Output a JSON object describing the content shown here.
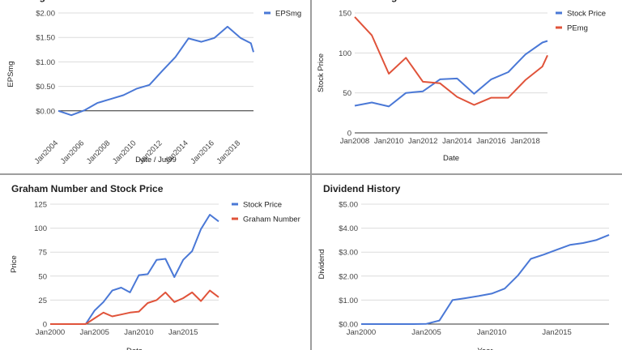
{
  "chart_data": [
    {
      "type": "line",
      "title": "EPSmg",
      "xlabel": "Date / Jul99",
      "ylabel": "EPSmg",
      "x": [
        2004,
        2005,
        2006,
        2007,
        2008,
        2009,
        2010,
        2011,
        2012,
        2013,
        2014,
        2015,
        2016,
        2017,
        2018,
        2019
      ],
      "series": [
        {
          "name": "EPSmg",
          "color": "#4a78d6",
          "values": [
            0.0,
            -0.09,
            0.01,
            0.16,
            0.24,
            0.32,
            0.45,
            0.53,
            0.82,
            1.1,
            1.48,
            1.41,
            1.49,
            1.72,
            1.49,
            1.38,
            1.2
          ]
        }
      ],
      "x_values": [
        2004,
        2005,
        2006,
        2007,
        2008,
        2009,
        2010,
        2011,
        2012,
        2013,
        2014,
        2015,
        2016,
        2017,
        2018,
        2018.8,
        2019
      ],
      "xlim": [
        2004,
        2019
      ],
      "ylim": [
        -0.5,
        2.0
      ],
      "xticks": [
        2004,
        2006,
        2008,
        2010,
        2012,
        2014,
        2016,
        2018
      ],
      "xtick_labels": [
        "Jan2004",
        "Jan2006",
        "Jan2008",
        "Jan2010",
        "Jan2012",
        "Jan2014",
        "Jan2016",
        "Jan2018"
      ],
      "yticks": [
        0.0,
        0.5,
        1.0,
        1.5,
        2.0
      ],
      "ytick_labels": [
        "$0.00",
        "$0.50",
        "$1.00",
        "$1.50",
        "$2.00"
      ],
      "legend": "top-right",
      "grid": true
    },
    {
      "type": "line",
      "title": "Price and PEmg",
      "xlabel": "Date",
      "ylabel": "Stock Price",
      "x": [
        2008,
        2009,
        2010,
        2011,
        2012,
        2013,
        2014,
        2015,
        2016,
        2017,
        2018,
        2019,
        2019.3
      ],
      "series": [
        {
          "name": "Stock Price",
          "color": "#4a78d6",
          "values": [
            34,
            38,
            33,
            50,
            52,
            67,
            68,
            49,
            67,
            76,
            98,
            113,
            115
          ]
        },
        {
          "name": "PEmg",
          "color": "#e0533a",
          "values": [
            145,
            122,
            74,
            94,
            64,
            62,
            45,
            35,
            44,
            44,
            66,
            83,
            97
          ]
        }
      ],
      "xlim": [
        2008,
        2019.3
      ],
      "ylim": [
        0,
        150
      ],
      "xticks": [
        2008,
        2010,
        2012,
        2014,
        2016,
        2018
      ],
      "xtick_labels": [
        "Jan2008",
        "Jan2010",
        "Jan2012",
        "Jan2014",
        "Jan2016",
        "Jan2018"
      ],
      "yticks": [
        0,
        50,
        100,
        150
      ],
      "ytick_labels": [
        "0",
        "50",
        "100",
        "150"
      ],
      "legend": "top-right",
      "grid": true
    },
    {
      "type": "line",
      "title": "Graham Number and Stock Price",
      "xlabel": "Date",
      "ylabel": "Price",
      "x": [
        2000,
        2001,
        2002,
        2003,
        2004,
        2005,
        2006,
        2007,
        2008,
        2009,
        2010,
        2011,
        2012,
        2013,
        2014,
        2015,
        2016,
        2017,
        2018,
        2019
      ],
      "series": [
        {
          "name": "Stock Price",
          "color": "#4a78d6",
          "values": [
            0,
            0,
            0,
            0,
            0,
            14,
            23,
            35,
            38,
            33,
            51,
            52,
            67,
            68,
            49,
            67,
            76,
            99,
            114,
            107
          ]
        },
        {
          "name": "Graham Number",
          "color": "#e0533a",
          "values": [
            0,
            0,
            0,
            0,
            0,
            6,
            12,
            8,
            10,
            12,
            13,
            22,
            25,
            33,
            23,
            27,
            33,
            24,
            35,
            28
          ]
        }
      ],
      "xlim": [
        2000,
        2019
      ],
      "ylim": [
        0,
        125
      ],
      "xticks": [
        2000,
        2005,
        2010,
        2015
      ],
      "xtick_labels": [
        "Jan2000",
        "Jan2005",
        "Jan2010",
        "Jan2015"
      ],
      "yticks": [
        0,
        25,
        50,
        75,
        100,
        125
      ],
      "ytick_labels": [
        "0",
        "25",
        "50",
        "75",
        "100",
        "125"
      ],
      "legend": "top-right",
      "grid": true
    },
    {
      "type": "line",
      "title": "Dividend History",
      "xlabel": "Year",
      "ylabel": "Dividend",
      "x": [
        2000,
        2002,
        2004,
        2005,
        2006,
        2007,
        2008,
        2009,
        2010,
        2011,
        2012,
        2013,
        2014,
        2015,
        2016,
        2017,
        2018,
        2019
      ],
      "series": [
        {
          "name": "Dividend",
          "color": "#4a78d6",
          "values": [
            0,
            0,
            0,
            0.01,
            0.15,
            1.0,
            1.08,
            1.17,
            1.27,
            1.48,
            2.02,
            2.72,
            2.9,
            3.1,
            3.3,
            3.38,
            3.5,
            3.72
          ]
        }
      ],
      "xlim": [
        2000,
        2019
      ],
      "ylim": [
        0,
        5
      ],
      "xticks": [
        2000,
        2005,
        2010,
        2015
      ],
      "xtick_labels": [
        "Jan2000",
        "Jan2005",
        "Jan2010",
        "Jan2015"
      ],
      "yticks": [
        0,
        1,
        2,
        3,
        4,
        5
      ],
      "ytick_labels": [
        "$0.00",
        "$1.00",
        "$2.00",
        "$3.00",
        "$4.00",
        "$5.00"
      ],
      "legend": "none",
      "grid": true
    }
  ]
}
